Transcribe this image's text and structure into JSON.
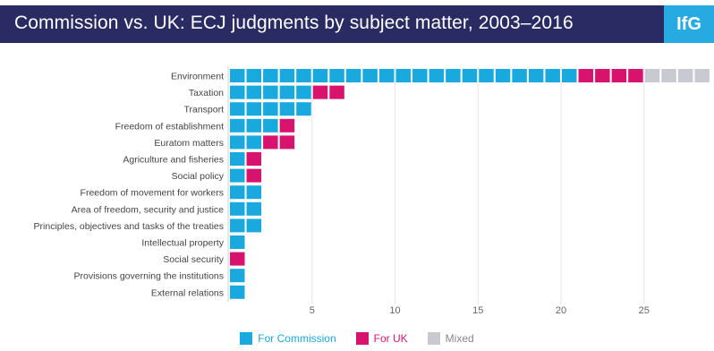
{
  "header": {
    "title": "Commission vs. UK: ECJ judgments by subject matter, 2003–2016",
    "logo_text": "IfG"
  },
  "colors": {
    "commission": "#19a9de",
    "uk": "#d8136e",
    "mixed": "#c9c9d1",
    "title_bg": "#2a2b63",
    "logo_bg": "#27a9e1"
  },
  "chart_data": {
    "type": "bar",
    "orientation": "horizontal",
    "stacked": true,
    "unit_squares": true,
    "title": "Commission vs. UK: ECJ judgments by subject matter, 2003–2016",
    "xlabel": "",
    "ylabel": "",
    "xlim": [
      0,
      29
    ],
    "xticks": [
      5,
      10,
      15,
      20,
      25
    ],
    "grid": true,
    "legend_position": "bottom",
    "categories": [
      "Environment",
      "Taxation",
      "Transport",
      "Freedom of establishment",
      "Euratom matters",
      "Agriculture and fisheries",
      "Social policy",
      "Freedom of movement for workers",
      "Area of freedom, security and justice",
      "Principles, objectives and tasks of the treaties",
      "Intellectual property",
      "Social security",
      "Provisions governing the institutions",
      "External relations"
    ],
    "series": [
      {
        "name": "For Commission",
        "values": [
          21,
          5,
          5,
          3,
          2,
          1,
          1,
          2,
          2,
          2,
          1,
          0,
          1,
          1
        ]
      },
      {
        "name": "For UK",
        "values": [
          4,
          2,
          0,
          1,
          2,
          1,
          1,
          0,
          0,
          0,
          0,
          1,
          0,
          0
        ]
      },
      {
        "name": "Mixed",
        "values": [
          4,
          0,
          0,
          0,
          0,
          0,
          0,
          0,
          0,
          0,
          0,
          0,
          0,
          0
        ]
      }
    ]
  }
}
